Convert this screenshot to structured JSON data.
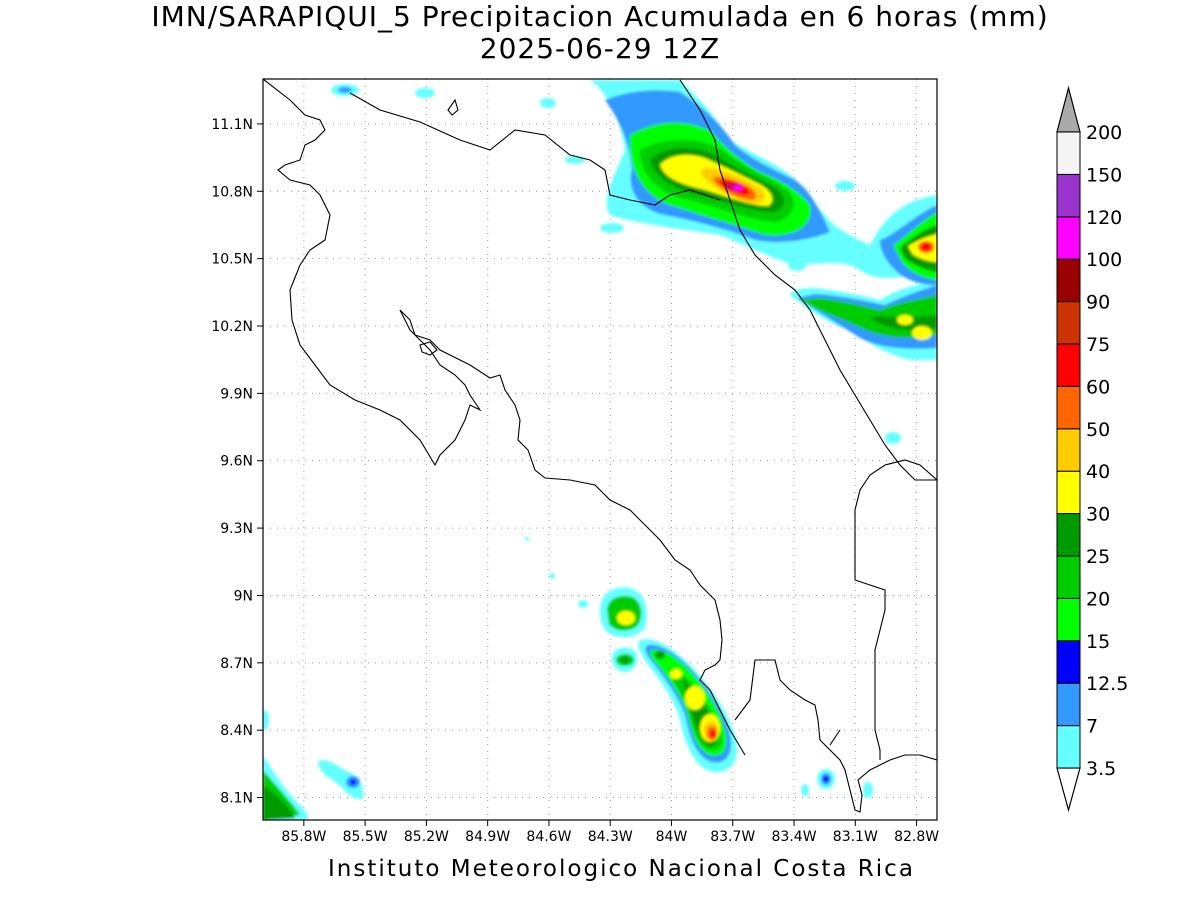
{
  "title": "IMN/SARAPIQUI_5 Precipitacion Acumulada en 6 horas (mm)",
  "subtitle": "2025-06-29 12Z",
  "footer": "Instituto Meteorologico Nacional Costa Rica",
  "map": {
    "lon_range": [
      -86.0,
      -82.7
    ],
    "lat_range": [
      8.0,
      11.3
    ],
    "lon_ticks": [
      {
        "value": -85.8,
        "label": "85.8W"
      },
      {
        "value": -85.5,
        "label": "85.5W"
      },
      {
        "value": -85.2,
        "label": "85.2W"
      },
      {
        "value": -84.9,
        "label": "84.9W"
      },
      {
        "value": -84.6,
        "label": "84.6W"
      },
      {
        "value": -84.3,
        "label": "84.3W"
      },
      {
        "value": -84.0,
        "label": "84W"
      },
      {
        "value": -83.7,
        "label": "83.7W"
      },
      {
        "value": -83.4,
        "label": "83.4W"
      },
      {
        "value": -83.1,
        "label": "83.1W"
      },
      {
        "value": -82.8,
        "label": "82.8W"
      }
    ],
    "lat_ticks": [
      {
        "value": 11.1,
        "label": "11.1N"
      },
      {
        "value": 10.8,
        "label": "10.8N"
      },
      {
        "value": 10.5,
        "label": "10.5N"
      },
      {
        "value": 10.2,
        "label": "10.2N"
      },
      {
        "value": 9.9,
        "label": "9.9N"
      },
      {
        "value": 9.6,
        "label": "9.6N"
      },
      {
        "value": 9.3,
        "label": "9.3N"
      },
      {
        "value": 9.0,
        "label": "9N"
      },
      {
        "value": 8.7,
        "label": "8.7N"
      },
      {
        "value": 8.4,
        "label": "8.4N"
      },
      {
        "value": 8.1,
        "label": "8.1N"
      }
    ],
    "grid": true,
    "precip_cells": [
      {
        "lon": -83.7,
        "lat": 10.85,
        "level": "max",
        "value_range": [
          120,
          150
        ]
      },
      {
        "lon": -83.85,
        "lat": 10.9,
        "level": "high",
        "value_range": [
          30,
          60
        ]
      },
      {
        "lon": -82.7,
        "lat": 10.55,
        "level": "high",
        "value_range": [
          25,
          40
        ]
      },
      {
        "lon": -82.85,
        "lat": 10.2,
        "level": "moderate",
        "value_range": [
          15,
          25
        ]
      },
      {
        "lon": -84.1,
        "lat": 8.9,
        "level": "moderate",
        "value_range": [
          20,
          40
        ]
      },
      {
        "lon": -83.7,
        "lat": 8.5,
        "level": "high",
        "value_range": [
          30,
          60
        ]
      },
      {
        "lon": -85.5,
        "lat": 8.2,
        "level": "low",
        "value_range": [
          7,
          15
        ]
      },
      {
        "lon": -83.1,
        "lat": 8.2,
        "level": "low",
        "value_range": [
          7,
          15
        ]
      }
    ]
  },
  "colorbar": {
    "levels": [
      {
        "label": "3.5",
        "color": "#66ffff"
      },
      {
        "label": "7",
        "color": "#3399ff"
      },
      {
        "label": "12.5",
        "color": "#0000ff"
      },
      {
        "label": "15",
        "color": "#00ff00"
      },
      {
        "label": "20",
        "color": "#00cc00"
      },
      {
        "label": "25",
        "color": "#009900"
      },
      {
        "label": "30",
        "color": "#ffff00"
      },
      {
        "label": "40",
        "color": "#ffcc00"
      },
      {
        "label": "50",
        "color": "#ff6600"
      },
      {
        "label": "60",
        "color": "#ff0000"
      },
      {
        "label": "75",
        "color": "#cc3300"
      },
      {
        "label": "90",
        "color": "#990000"
      },
      {
        "label": "100",
        "color": "#ff00ff"
      },
      {
        "label": "120",
        "color": "#9933cc"
      },
      {
        "label": "150",
        "color": "#f5f5f5"
      },
      {
        "label": "200",
        "color": "#aaaaaa"
      }
    ]
  }
}
